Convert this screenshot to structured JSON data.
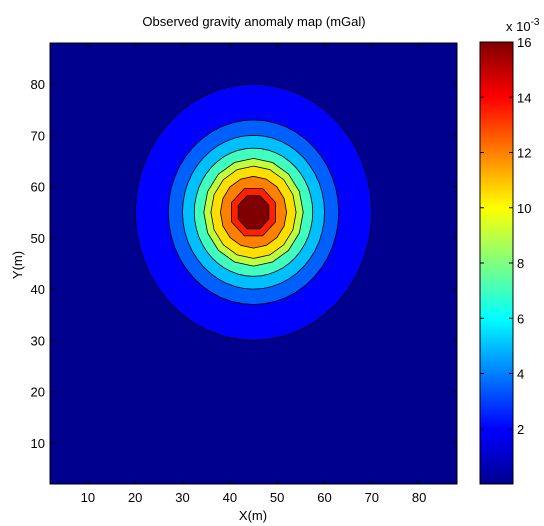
{
  "chart_data": {
    "type": "heatmap",
    "subtype": "filled-contour",
    "title": "Observed gravity anomaly map (mGal)",
    "xlabel": "X(m)",
    "ylabel": "Y(m)",
    "xlim": [
      2,
      88
    ],
    "ylim": [
      2,
      88
    ],
    "x_ticks": [
      10,
      20,
      30,
      40,
      50,
      60,
      70,
      80
    ],
    "y_ticks": [
      10,
      20,
      30,
      40,
      50,
      60,
      70,
      80
    ],
    "colormap": "jet",
    "colorbar": {
      "range": [
        0,
        0.016
      ],
      "ticks": [
        0.002,
        0.004,
        0.006,
        0.008,
        0.01,
        0.012,
        0.014,
        0.016
      ],
      "tick_labels": [
        "2",
        "4",
        "6",
        "8",
        "10",
        "12",
        "14",
        "16"
      ],
      "exponent_label": "x 10",
      "exponent_power": "-3"
    },
    "anomaly": {
      "center_x": 45,
      "center_y": 55,
      "peak_value": 0.016
    },
    "contour_bands": [
      {
        "level": 0.0005,
        "radius": 25,
        "color": "#0000ff"
      },
      {
        "level": 0.0025,
        "radius": 18,
        "color": "#0060ff"
      },
      {
        "level": 0.0045,
        "radius": 15,
        "color": "#00bfff"
      },
      {
        "level": 0.0065,
        "radius": 12.5,
        "color": "#40ffbf"
      },
      {
        "level": 0.0085,
        "radius": 10.5,
        "color": "#bfff40"
      },
      {
        "level": 0.0105,
        "radius": 9,
        "color": "#ffdf00"
      },
      {
        "level": 0.0125,
        "radius": 7,
        "color": "#ff8000"
      },
      {
        "level": 0.0145,
        "radius": 5,
        "color": "#ff2000"
      },
      {
        "level": 0.016,
        "radius": 3.5,
        "color": "#800000"
      }
    ],
    "background_color": "#00008f",
    "grid": false,
    "legend": "none"
  }
}
